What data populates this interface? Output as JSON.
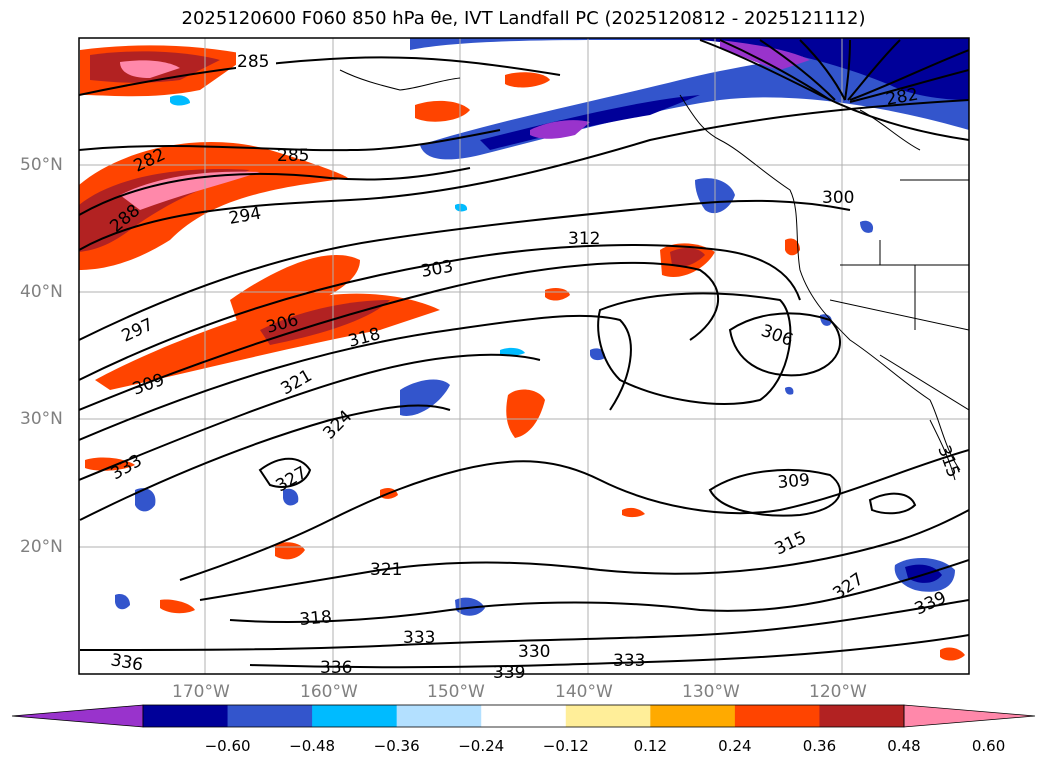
{
  "title": "2025120600 F060 850 hPa θe, IVT Landfall PC (2025120812 - 2025121112)",
  "map": {
    "lat_labels": [
      "50°N",
      "40°N",
      "30°N",
      "20°N"
    ],
    "lon_labels": [
      "170°W",
      "160°W",
      "150°W",
      "140°W",
      "130°W",
      "120°W"
    ],
    "contour_labels": [
      "285",
      "282",
      "288",
      "285",
      "294",
      "297",
      "306",
      "303",
      "312",
      "318",
      "309",
      "321",
      "324",
      "306",
      "300",
      "282",
      "333",
      "327",
      "321",
      "318",
      "336",
      "333",
      "336",
      "330",
      "339",
      "333",
      "309",
      "315",
      "327",
      "339",
      "315"
    ]
  },
  "colorbar": {
    "colors": [
      "#9933cc",
      "#000099",
      "#3355cc",
      "#00bbff",
      "#b3e0ff",
      "#ffffff",
      "#ffee99",
      "#ffaa00",
      "#ff4400",
      "#b22222",
      "#ff88aa"
    ],
    "ticks": [
      "−0.60",
      "−0.48",
      "−0.36",
      "−0.24",
      "−0.12",
      "0.12",
      "0.24",
      "0.36",
      "0.48",
      "0.60"
    ]
  }
}
